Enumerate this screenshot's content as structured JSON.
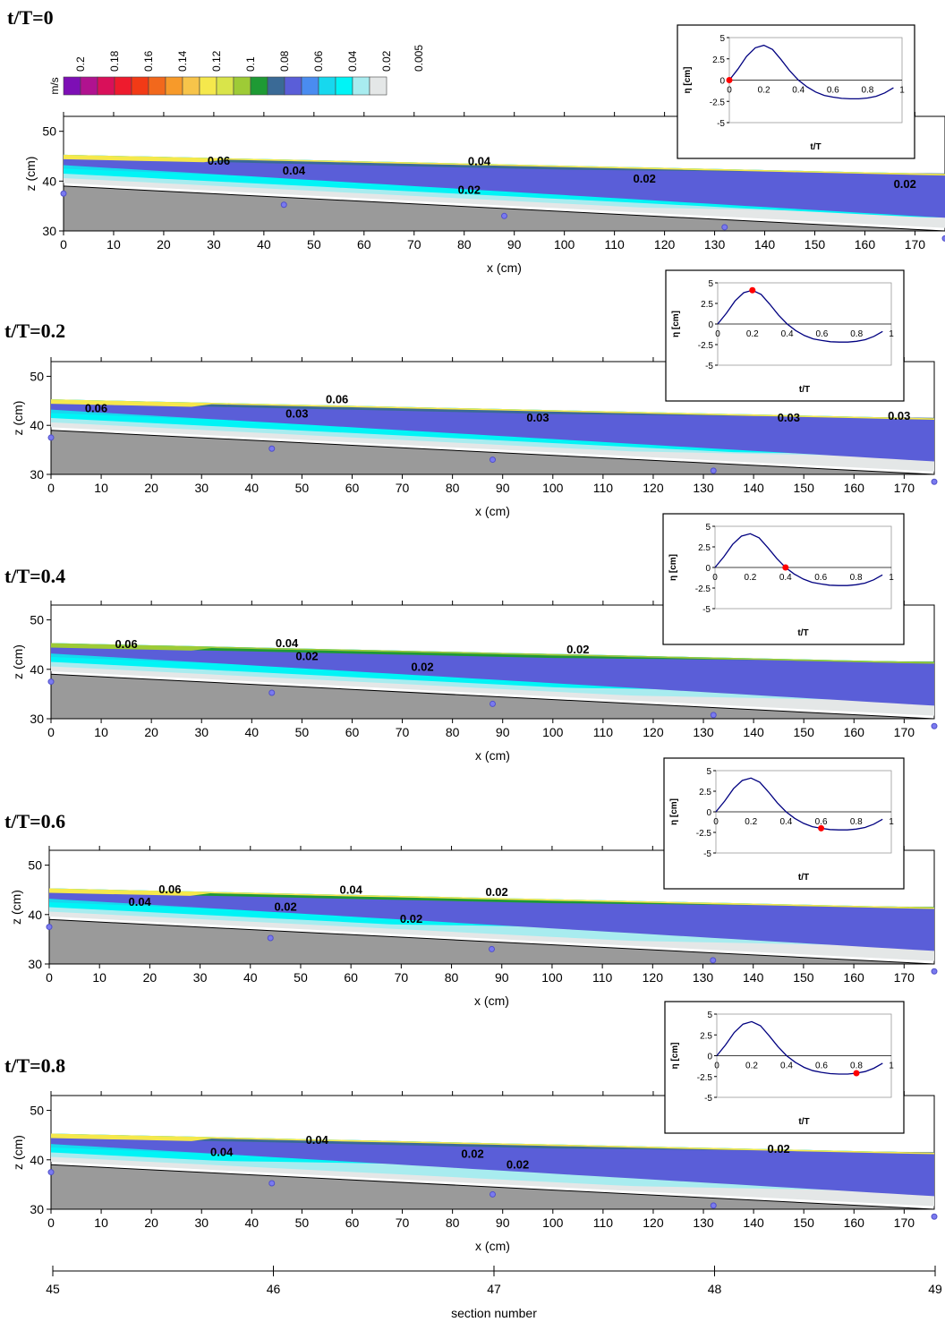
{
  "chart_data": {
    "type": "contour",
    "colorbar": {
      "unit": "m/s",
      "labels": [
        "0.2",
        "0.18",
        "0.16",
        "0.14",
        "0.12",
        "0.1",
        "0.08",
        "0.06",
        "0.04",
        "0.02",
        "0.005"
      ],
      "colors": [
        "#7d0fb5",
        "#b0128f",
        "#d9105a",
        "#ee1b2d",
        "#f23a16",
        "#f2681c",
        "#f79a2a",
        "#f7c44a",
        "#f5e84c",
        "#d9e44a",
        "#9ecb36",
        "#1e9a34",
        "#3a6a96",
        "#5a5ed8",
        "#4a8cf0",
        "#17d8ee",
        "#00f4f6",
        "#a8ecef",
        "#e4e7e7"
      ]
    },
    "axes": {
      "x": {
        "label": "x (cm)",
        "range": [
          0,
          176
        ],
        "ticks": [
          0,
          10,
          20,
          30,
          40,
          50,
          60,
          70,
          80,
          90,
          100,
          110,
          120,
          130,
          140,
          150,
          160,
          170
        ]
      },
      "z": {
        "label": "z (cm)",
        "range": [
          30,
          53
        ],
        "ticks": [
          30,
          40,
          50
        ]
      }
    },
    "inset": {
      "xlabel": "t/T",
      "ylabel": "η [cm]",
      "xticks": [
        "0",
        "0.2",
        "0.4",
        "0.6",
        "0.8",
        "1"
      ],
      "yticks": [
        "5",
        "2.5",
        "0",
        "-2.5",
        "-5"
      ],
      "curve": [
        [
          0,
          0
        ],
        [
          0.05,
          1.3
        ],
        [
          0.1,
          2.8
        ],
        [
          0.15,
          3.8
        ],
        [
          0.2,
          4.1
        ],
        [
          0.25,
          3.6
        ],
        [
          0.3,
          2.4
        ],
        [
          0.35,
          1.1
        ],
        [
          0.4,
          0
        ],
        [
          0.45,
          -0.8
        ],
        [
          0.5,
          -1.4
        ],
        [
          0.55,
          -1.8
        ],
        [
          0.6,
          -2.0
        ],
        [
          0.65,
          -2.15
        ],
        [
          0.7,
          -2.2
        ],
        [
          0.75,
          -2.2
        ],
        [
          0.8,
          -2.1
        ],
        [
          0.85,
          -1.9
        ],
        [
          0.9,
          -1.5
        ],
        [
          0.95,
          -0.9
        ]
      ]
    },
    "bed": {
      "x": [
        0,
        176
      ],
      "z": [
        39,
        30
      ]
    },
    "gauges_x": [
      0,
      44,
      88,
      132,
      176
    ],
    "panels": [
      {
        "title": "t/T=0",
        "phase": 0,
        "labels": [
          {
            "t": "0.06",
            "x": 31,
            "z": 43.3
          },
          {
            "t": "0.04",
            "x": 46,
            "z": 41.3
          },
          {
            "t": "0.04",
            "x": 83,
            "z": 43.2
          },
          {
            "t": "0.02",
            "x": 81,
            "z": 37.5
          },
          {
            "t": "0.02",
            "x": 116,
            "z": 39.7
          },
          {
            "t": "0.02",
            "x": 168,
            "z": 38.6
          }
        ]
      },
      {
        "title": "t/T=0.2",
        "phase": 0.2,
        "labels": [
          {
            "t": "0.06",
            "x": 9,
            "z": 42.7
          },
          {
            "t": "0.06",
            "x": 57,
            "z": 44.5
          },
          {
            "t": "0.03",
            "x": 49,
            "z": 41.6
          },
          {
            "t": "0.03",
            "x": 97,
            "z": 40.8
          },
          {
            "t": "0.03",
            "x": 147,
            "z": 40.8
          },
          {
            "t": "0.03",
            "x": 169,
            "z": 41.1
          }
        ]
      },
      {
        "title": "t/T=0.4",
        "phase": 0.4,
        "labels": [
          {
            "t": "0.06",
            "x": 15,
            "z": 44.3
          },
          {
            "t": "0.04",
            "x": 47,
            "z": 44.5
          },
          {
            "t": "0.02",
            "x": 51,
            "z": 41.9
          },
          {
            "t": "0.02",
            "x": 74,
            "z": 39.7
          },
          {
            "t": "0.02",
            "x": 105,
            "z": 43.2
          }
        ]
      },
      {
        "title": "t/T=0.6",
        "phase": 0.6,
        "labels": [
          {
            "t": "0.06",
            "x": 24,
            "z": 44.3
          },
          {
            "t": "0.04",
            "x": 18,
            "z": 41.8
          },
          {
            "t": "0.04",
            "x": 60,
            "z": 44.2
          },
          {
            "t": "0.02",
            "x": 47,
            "z": 40.8
          },
          {
            "t": "0.02",
            "x": 72,
            "z": 38.3
          },
          {
            "t": "0.02",
            "x": 89,
            "z": 43.8
          }
        ]
      },
      {
        "title": "t/T=0.8",
        "phase": 0.8,
        "labels": [
          {
            "t": "0.04",
            "x": 34,
            "z": 40.8
          },
          {
            "t": "0.04",
            "x": 53,
            "z": 43.2
          },
          {
            "t": "0.02",
            "x": 84,
            "z": 40.4
          },
          {
            "t": "0.02",
            "x": 93,
            "z": 38.2
          },
          {
            "t": "0.02",
            "x": 145,
            "z": 41.4
          }
        ]
      }
    ],
    "section_axis": {
      "label": "section number",
      "ticks": [
        "45",
        "46",
        "47",
        "48",
        "49"
      ]
    }
  }
}
